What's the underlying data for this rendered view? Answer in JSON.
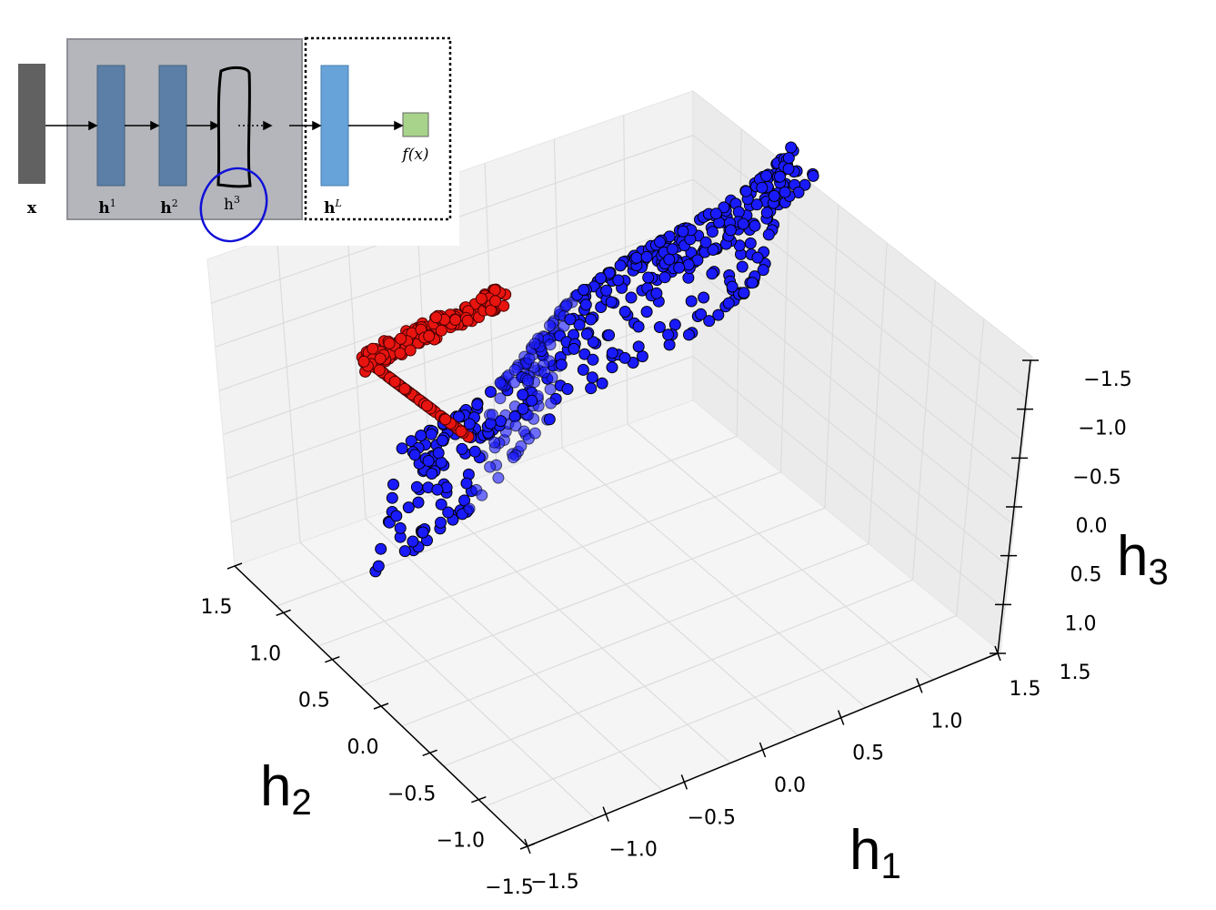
{
  "plot": {
    "x_label": {
      "base": "h",
      "sub": "1"
    },
    "y_label": {
      "base": "h",
      "sub": "2"
    },
    "z_label": {
      "base": "h",
      "sub": "3"
    },
    "x_ticks": [
      "−1.5",
      "−1.0",
      "−0.5",
      "0.0",
      "0.5",
      "1.0",
      "1.5"
    ],
    "y_ticks": [
      "1.5",
      "1.0",
      "0.5",
      "0.0",
      "−0.5",
      "−1.0",
      "−1.5"
    ],
    "z_ticks": [
      "−1.5",
      "−1.0",
      "−0.5",
      "0.0",
      "0.5",
      "1.0",
      "1.5"
    ]
  },
  "diagram": {
    "input": "x",
    "layers": [
      {
        "base": "h",
        "sup": "1"
      },
      {
        "base": "h",
        "sup": "2"
      },
      {
        "base": "h",
        "sup": "3"
      },
      {
        "base": "h",
        "sup": "L"
      }
    ],
    "output": "f(x)"
  }
}
